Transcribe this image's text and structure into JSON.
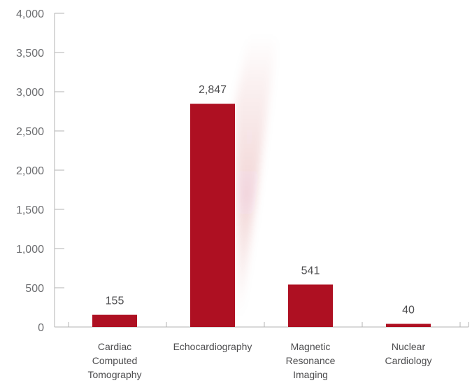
{
  "chart_data": {
    "type": "bar",
    "categories": [
      [
        "Cardiac",
        "Computed",
        "Tomography"
      ],
      [
        "Echocardiography"
      ],
      [
        "Magnetic",
        "Resonance",
        "Imaging"
      ],
      [
        "Nuclear",
        "Cardiology"
      ]
    ],
    "values": [
      155,
      2847,
      541,
      40
    ],
    "value_labels": [
      "155",
      "2,847",
      "541",
      "40"
    ],
    "y_ticks": [
      0,
      500,
      1000,
      1500,
      2000,
      2500,
      3000,
      3500,
      4000
    ],
    "y_tick_labels": [
      "0",
      "500",
      "1,000",
      "1,500",
      "2,000",
      "2,500",
      "3,000",
      "3,500",
      "4,000"
    ],
    "ylim": [
      0,
      4000
    ],
    "grid": false,
    "colors": {
      "bar": "#ae1022",
      "axis": "#b3b3b3",
      "text": "#4d4d4f"
    }
  }
}
